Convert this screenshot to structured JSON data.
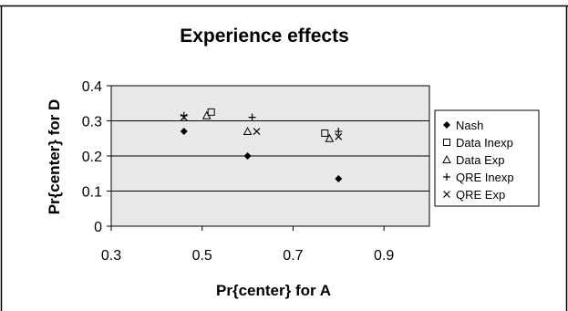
{
  "chart_data": {
    "type": "scatter",
    "title": "Experience effects",
    "xlabel": "Pr{center} for A",
    "ylabel": "Pr{center} for D",
    "xlim": [
      0.3,
      1.0
    ],
    "ylim": [
      0,
      0.4
    ],
    "x_ticks": [
      "0.3",
      "0.5",
      "0.7",
      "0.9"
    ],
    "y_ticks": [
      "0",
      "0.1",
      "0.2",
      "0.3",
      "0.4"
    ],
    "grid": "horizontal",
    "plot_background": "#e8e8e8",
    "legend_position": "right",
    "series": [
      {
        "name": "Nash",
        "marker": "diamond",
        "points": [
          [
            0.46,
            0.27
          ],
          [
            0.6,
            0.2
          ],
          [
            0.8,
            0.135
          ]
        ]
      },
      {
        "name": "Data Inexp",
        "marker": "square",
        "points": [
          [
            0.52,
            0.325
          ],
          [
            0.77,
            0.265
          ]
        ]
      },
      {
        "name": "Data Exp",
        "marker": "triangle",
        "points": [
          [
            0.51,
            0.315
          ],
          [
            0.6,
            0.27
          ],
          [
            0.78,
            0.25
          ]
        ]
      },
      {
        "name": "QRE Inexp",
        "marker": "plus",
        "points": [
          [
            0.46,
            0.315
          ],
          [
            0.61,
            0.31
          ],
          [
            0.8,
            0.27
          ]
        ]
      },
      {
        "name": "QRE Exp",
        "marker": "cross",
        "points": [
          [
            0.46,
            0.31
          ],
          [
            0.62,
            0.27
          ],
          [
            0.8,
            0.255
          ]
        ]
      }
    ]
  }
}
